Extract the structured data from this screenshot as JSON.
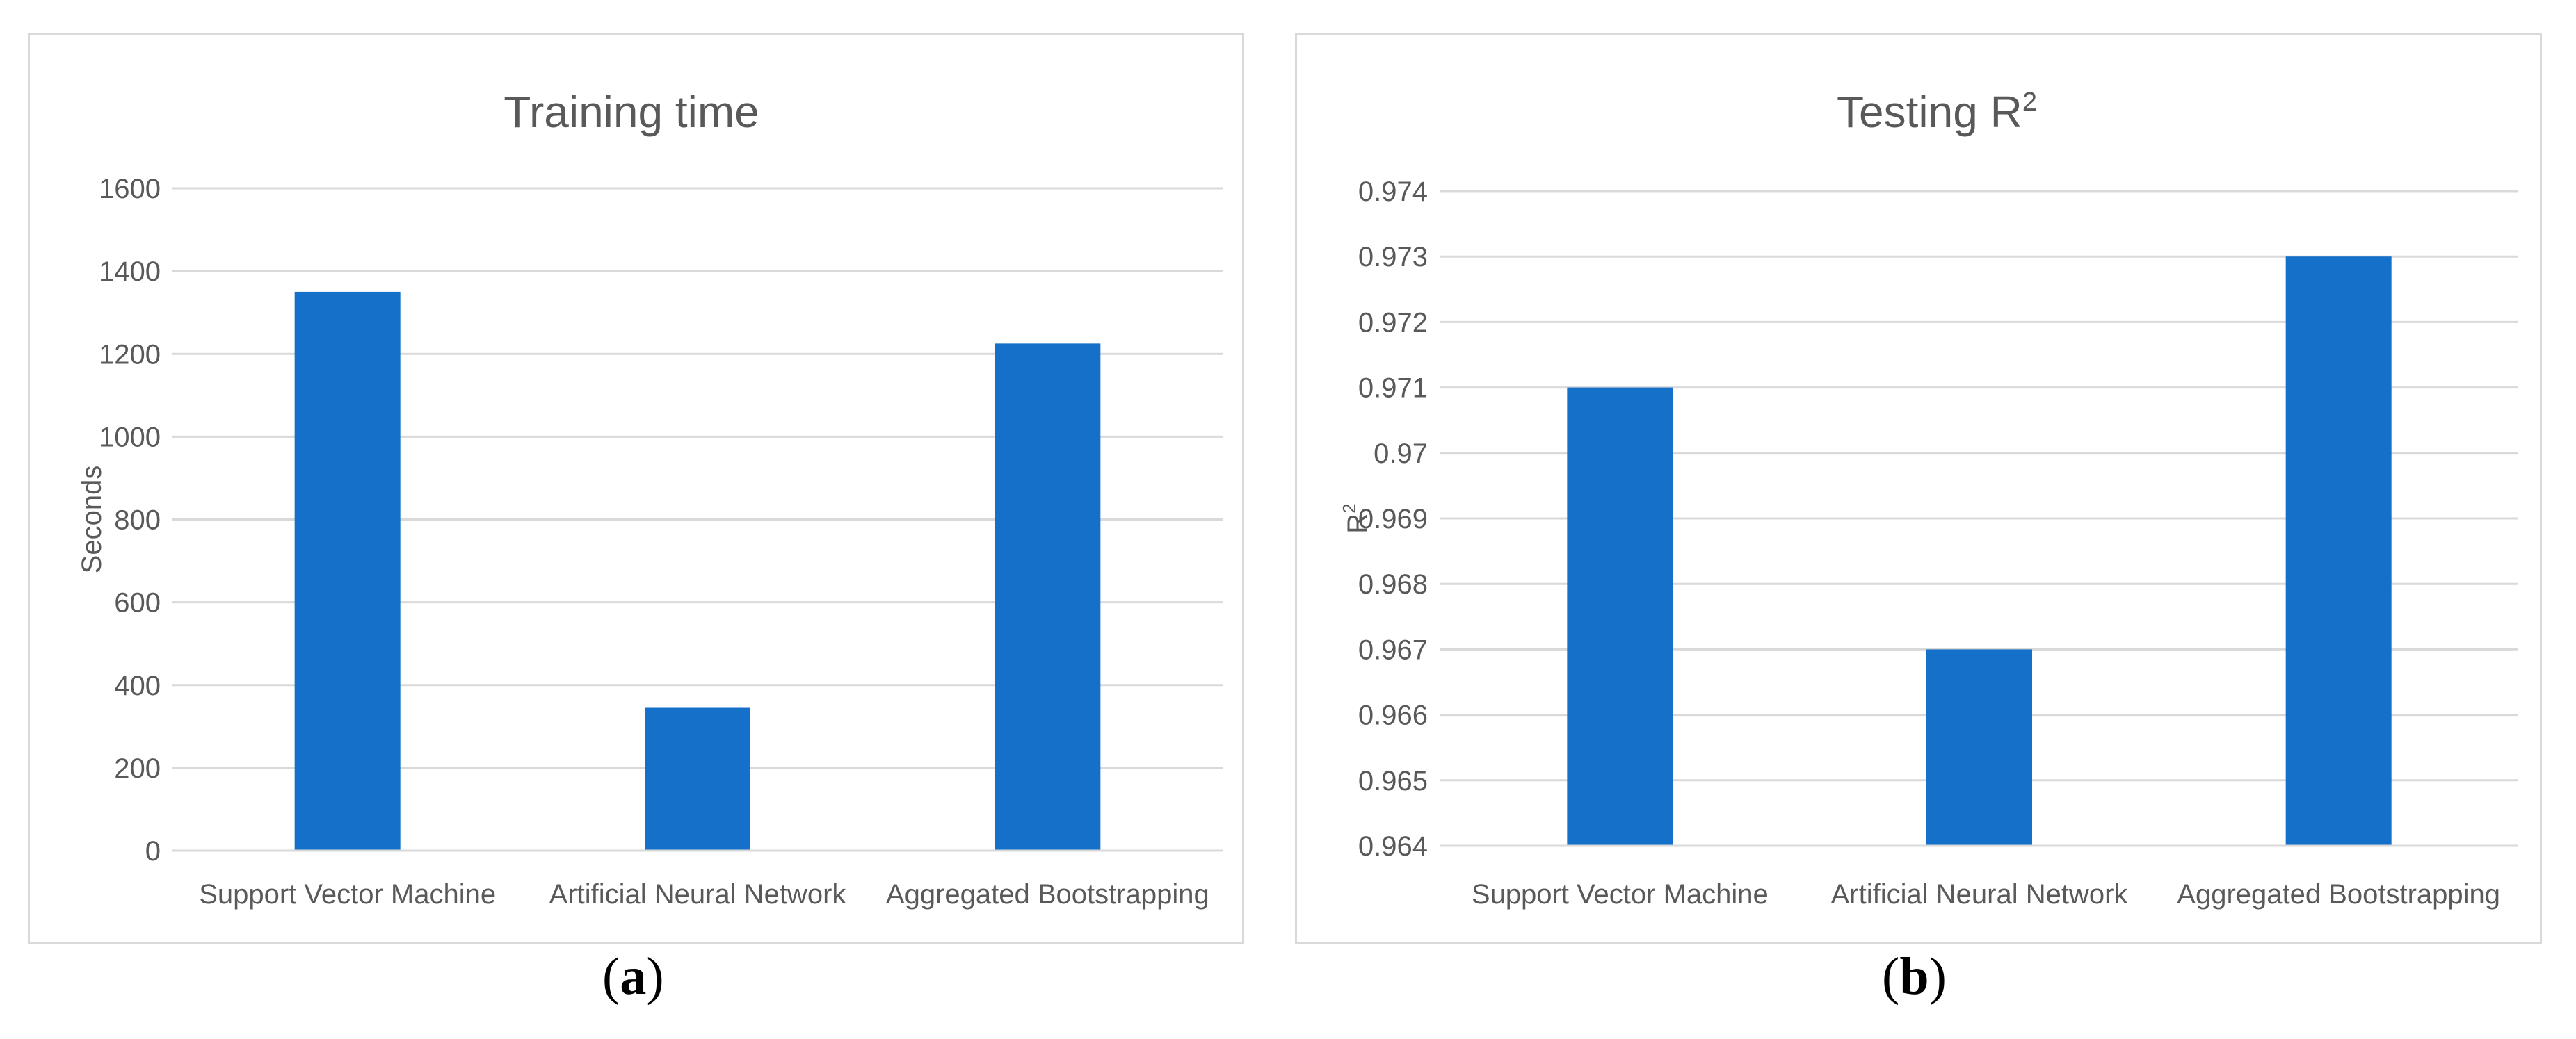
{
  "colors": {
    "bar": "#1470C8",
    "grid": "#d9d9d9",
    "text": "#595959",
    "border": "#d9d9d9"
  },
  "panels": {
    "a": {
      "label": "a"
    },
    "b": {
      "label": "b"
    }
  },
  "chart_data": [
    {
      "id": "a",
      "type": "bar",
      "title": "Training time",
      "title_sup": "",
      "xlabel": "",
      "ylabel": "Seconds",
      "ylabel_sup": "",
      "categories": [
        "Support Vector Machine",
        "Artificial Neural Network",
        "Aggregated Bootstrapping"
      ],
      "values": [
        1350,
        345,
        1225
      ],
      "ylim": [
        0,
        1600
      ],
      "yticks": [
        0,
        200,
        400,
        600,
        800,
        1000,
        1200,
        1400,
        1600
      ],
      "ytick_labels": [
        "0",
        "200",
        "400",
        "600",
        "800",
        "1000",
        "1200",
        "1400",
        "1600"
      ],
      "grid": true,
      "legend": "none"
    },
    {
      "id": "b",
      "type": "bar",
      "title": "Testing R",
      "title_sup": "2",
      "xlabel": "",
      "ylabel": "R",
      "ylabel_sup": "2",
      "categories": [
        "Support Vector Machine",
        "Artificial Neural Network",
        "Aggregated Bootstrapping"
      ],
      "values": [
        0.971,
        0.967,
        0.973
      ],
      "ylim": [
        0.964,
        0.974
      ],
      "yticks": [
        0.964,
        0.965,
        0.966,
        0.967,
        0.968,
        0.969,
        0.97,
        0.971,
        0.972,
        0.973,
        0.974
      ],
      "ytick_labels": [
        "0.964",
        "0.965",
        "0.966",
        "0.967",
        "0.968",
        "0.969",
        "0.97",
        "0.971",
        "0.972",
        "0.973",
        "0.974"
      ],
      "grid": true,
      "legend": "none"
    }
  ]
}
